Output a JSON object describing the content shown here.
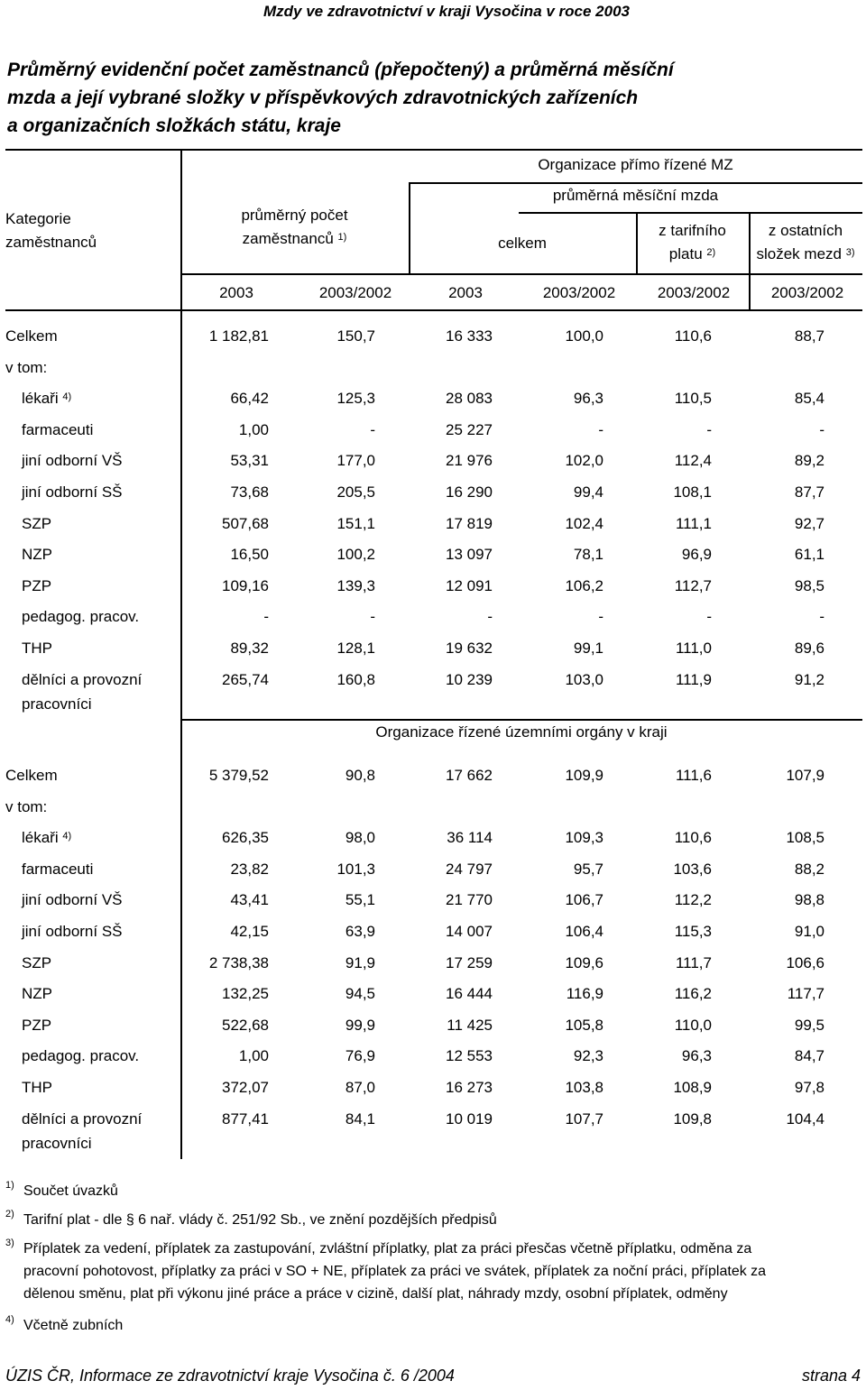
{
  "page_header": "Mzdy ve zdravotnictví v kraji Vysočina v roce 2003",
  "title_lines": [
    "Průměrný evidenční počet zaměstnanců (přepočtený) a průměrná měsíční",
    "mzda a její vybrané složky v příspěvkových zdravotnických zařízeních",
    "a organizačních složkách státu, kraje"
  ],
  "headers": {
    "kategorie_1": "Kategorie",
    "kategorie_2": "zaměstnanců",
    "org_mz": "Organizace přímo řízené MZ",
    "prumerny_pocet_1": "průměrný počet",
    "prumerny_pocet_2": "zaměstnanců",
    "prumerny_pocet_sup": "1)",
    "prumerna_mzda": "průměrná měsíční mzda",
    "celkem": "celkem",
    "tarif_1": "z tarifního",
    "tarif_2": "platu",
    "tarif_sup": "2)",
    "ostatni_1": "z ostatních",
    "ostatni_2": "složek mezd",
    "ostatni_sup": "3)",
    "years": [
      "2003",
      "2003/2002",
      "2003",
      "2003/2002",
      "2003/2002",
      "2003/2002"
    ]
  },
  "section2_title": "Organizace řízené územními orgány v kraji",
  "section1_rows": [
    {
      "label": "Celkem",
      "indent": false,
      "sup": "",
      "values": [
        "1 182,81",
        "150,7",
        "16 333",
        "100,0",
        "110,6",
        "88,7"
      ]
    },
    {
      "label": "v tom:",
      "indent": false,
      "sup": "",
      "values": []
    },
    {
      "label": "lékaři",
      "indent": true,
      "sup": "4)",
      "values": [
        "66,42",
        "125,3",
        "28 083",
        "96,3",
        "110,5",
        "85,4"
      ]
    },
    {
      "label": "farmaceuti",
      "indent": true,
      "sup": "",
      "values": [
        "1,00",
        "-",
        "25 227",
        "-",
        "-",
        "-"
      ]
    },
    {
      "label": "jiní odborní VŠ",
      "indent": true,
      "sup": "",
      "values": [
        "53,31",
        "177,0",
        "21 976",
        "102,0",
        "112,4",
        "89,2"
      ]
    },
    {
      "label": "jiní odborní SŠ",
      "indent": true,
      "sup": "",
      "values": [
        "73,68",
        "205,5",
        "16 290",
        "99,4",
        "108,1",
        "87,7"
      ]
    },
    {
      "label": "SZP",
      "indent": true,
      "sup": "",
      "values": [
        "507,68",
        "151,1",
        "17 819",
        "102,4",
        "111,1",
        "92,7"
      ]
    },
    {
      "label": "NZP",
      "indent": true,
      "sup": "",
      "values": [
        "16,50",
        "100,2",
        "13 097",
        "78,1",
        "96,9",
        "61,1"
      ]
    },
    {
      "label": "PZP",
      "indent": true,
      "sup": "",
      "values": [
        "109,16",
        "139,3",
        "12 091",
        "106,2",
        "112,7",
        "98,5"
      ]
    },
    {
      "label": "pedagog. pracov.",
      "indent": true,
      "sup": "",
      "values": [
        "-",
        "-",
        "-",
        "-",
        "-",
        "-"
      ]
    },
    {
      "label": "THP",
      "indent": true,
      "sup": "",
      "values": [
        "89,32",
        "128,1",
        "19 632",
        "99,1",
        "111,0",
        "89,6"
      ]
    },
    {
      "label": "dělníci a provozní",
      "label2": "pracovníci",
      "indent": true,
      "sup": "",
      "values": [
        "265,74",
        "160,8",
        "10 239",
        "103,0",
        "111,9",
        "91,2"
      ]
    }
  ],
  "section2_rows": [
    {
      "label": "Celkem",
      "indent": false,
      "sup": "",
      "values": [
        "5 379,52",
        "90,8",
        "17 662",
        "109,9",
        "111,6",
        "107,9"
      ]
    },
    {
      "label": "v tom:",
      "indent": false,
      "sup": "",
      "values": []
    },
    {
      "label": "lékaři",
      "indent": true,
      "sup": "4)",
      "values": [
        "626,35",
        "98,0",
        "36 114",
        "109,3",
        "110,6",
        "108,5"
      ]
    },
    {
      "label": "farmaceuti",
      "indent": true,
      "sup": "",
      "values": [
        "23,82",
        "101,3",
        "24 797",
        "95,7",
        "103,6",
        "88,2"
      ]
    },
    {
      "label": "jiní odborní VŠ",
      "indent": true,
      "sup": "",
      "values": [
        "43,41",
        "55,1",
        "21 770",
        "106,7",
        "112,2",
        "98,8"
      ]
    },
    {
      "label": "jiní odborní SŠ",
      "indent": true,
      "sup": "",
      "values": [
        "42,15",
        "63,9",
        "14 007",
        "106,4",
        "115,3",
        "91,0"
      ]
    },
    {
      "label": "SZP",
      "indent": true,
      "sup": "",
      "values": [
        "2 738,38",
        "91,9",
        "17 259",
        "109,6",
        "111,7",
        "106,6"
      ]
    },
    {
      "label": "NZP",
      "indent": true,
      "sup": "",
      "values": [
        "132,25",
        "94,5",
        "16 444",
        "116,9",
        "116,2",
        "117,7"
      ]
    },
    {
      "label": "PZP",
      "indent": true,
      "sup": "",
      "values": [
        "522,68",
        "99,9",
        "11 425",
        "105,8",
        "110,0",
        "99,5"
      ]
    },
    {
      "label": "pedagog. pracov.",
      "indent": true,
      "sup": "",
      "values": [
        "1,00",
        "76,9",
        "12 553",
        "92,3",
        "96,3",
        "84,7"
      ]
    },
    {
      "label": "THP",
      "indent": true,
      "sup": "",
      "values": [
        "372,07",
        "87,0",
        "16 273",
        "103,8",
        "108,9",
        "97,8"
      ]
    },
    {
      "label": "dělníci a provozní",
      "label2": "pracovníci",
      "indent": true,
      "sup": "",
      "values": [
        "877,41",
        "84,1",
        "10 019",
        "107,7",
        "109,8",
        "104,4"
      ]
    }
  ],
  "footnotes": [
    {
      "mark": "1)",
      "lines": [
        "Součet úvazků"
      ]
    },
    {
      "mark": "2)",
      "lines": [
        "Tarifní plat - dle § 6 nař. vlády č. 251/92 Sb., ve znění pozdějších předpisů"
      ]
    },
    {
      "mark": "3)",
      "lines": [
        "Příplatek za vedení, příplatek za zastupování, zvláštní příplatky, plat za práci přesčas včetně příplatku, odměna za",
        "pracovní pohotovost, příplatky za práci v SO + NE, příplatek za práci ve svátek, příplatek za noční práci, příplatek za",
        "dělenou směnu, plat při výkonu jiné práce a práce v cizině, další plat, náhrady mzdy, osobní příplatek, odměny"
      ]
    },
    {
      "mark": "4)",
      "lines": [
        "Včetně zubních"
      ]
    }
  ],
  "footer_left": "ÚZIS ČR, Informace ze zdravotnictví kraje Vysočina č. 6 /2004",
  "footer_right": "strana 4"
}
